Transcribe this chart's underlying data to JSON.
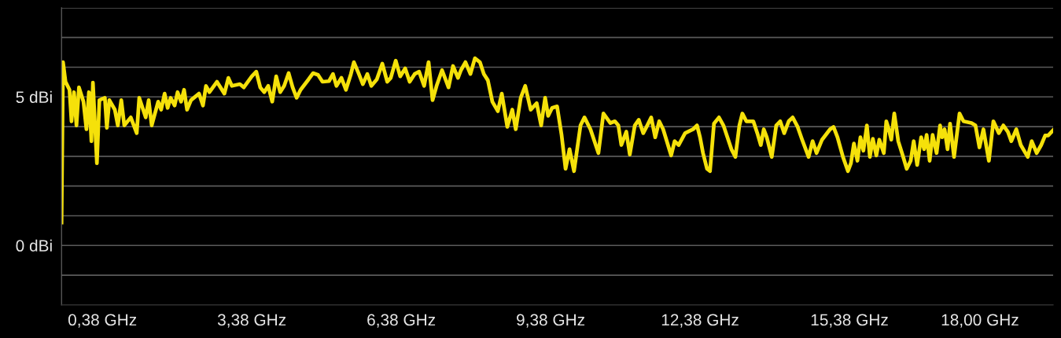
{
  "chart_data": {
    "type": "line",
    "x": [
      -0.44,
      -0.41,
      -0.36,
      -0.28,
      -0.24,
      -0.19,
      -0.14,
      -0.09,
      0.0,
      0.06,
      0.11,
      0.16,
      0.19,
      0.27,
      0.32,
      0.43,
      0.47,
      0.52,
      0.63,
      0.69,
      0.76,
      0.82,
      0.95,
      1.07,
      1.12,
      1.25,
      1.31,
      1.37,
      1.5,
      1.56,
      1.63,
      1.69,
      1.75,
      1.83,
      1.89,
      1.96,
      2.02,
      2.08,
      2.16,
      2.32,
      2.4,
      2.46,
      2.53,
      2.68,
      2.83,
      2.91,
      2.98,
      3.14,
      3.22,
      3.38,
      3.47,
      3.55,
      3.63,
      3.71,
      3.79,
      3.87,
      3.95,
      4.03,
      4.12,
      4.2,
      4.28,
      4.36,
      4.52,
      4.61,
      4.71,
      4.8,
      4.93,
      5.01,
      5.08,
      5.18,
      5.27,
      5.37,
      5.43,
      5.53,
      5.61,
      5.7,
      5.78,
      5.89,
      6.0,
      6.1,
      6.17,
      6.27,
      6.36,
      6.46,
      6.55,
      6.65,
      6.74,
      6.84,
      6.93,
      7.01,
      7.09,
      7.2,
      7.33,
      7.42,
      7.52,
      7.58,
      7.67,
      7.77,
      7.86,
      7.96,
      8.04,
      8.12,
      8.21,
      8.32,
      8.4,
      8.51,
      8.61,
      8.68,
      8.78,
      8.87,
      8.98,
      9.1,
      9.19,
      9.27,
      9.33,
      9.41,
      9.51,
      9.6,
      9.68,
      9.76,
      9.85,
      9.98,
      10.06,
      10.18,
      10.34,
      10.44,
      10.58,
      10.67,
      10.74,
      10.8,
      10.9,
      10.97,
      11.07,
      11.15,
      11.24,
      11.32,
      11.4,
      11.48,
      11.56,
      11.64,
      11.8,
      11.87,
      11.95,
      12.08,
      12.24,
      12.32,
      12.38,
      12.44,
      12.52,
      12.58,
      12.66,
      12.76,
      12.85,
      13.01,
      13.09,
      13.17,
      13.23,
      13.31,
      13.45,
      13.53,
      13.6,
      13.66,
      13.72,
      13.82,
      13.91,
      13.99,
      14.07,
      14.16,
      14.24,
      14.34,
      14.43,
      14.56,
      14.64,
      14.72,
      14.83,
      14.99,
      15.06,
      15.14,
      15.25,
      15.35,
      15.41,
      15.47,
      15.54,
      15.6,
      15.66,
      15.73,
      15.79,
      15.85,
      15.92,
      15.98,
      16.07,
      16.12,
      16.17,
      16.22,
      16.28,
      16.36,
      16.45,
      16.53,
      16.61,
      16.67,
      16.74,
      16.82,
      16.88,
      16.93,
      16.99,
      17.05,
      17.13,
      17.2,
      17.24,
      17.29,
      17.35,
      17.4,
      17.48,
      17.59,
      17.67,
      17.83,
      17.91,
      17.99,
      18.07,
      18.18,
      18.27,
      18.38,
      18.47,
      18.56,
      18.63,
      18.73,
      18.82,
      18.96,
      19.04,
      19.14,
      19.23,
      19.31,
      19.37,
      19.47
    ],
    "series": [
      {
        "color": "#f5e10a",
        "values": [
          0.77,
          6.17,
          5.51,
          5.24,
          4.18,
          5.16,
          4.04,
          5.32,
          4.84,
          3.91,
          5.16,
          3.51,
          5.48,
          2.77,
          4.89,
          4.97,
          3.96,
          4.89,
          4.57,
          4.04,
          4.89,
          4.04,
          4.31,
          3.78,
          4.97,
          4.31,
          4.89,
          4.04,
          4.84,
          4.57,
          5.11,
          4.63,
          4.97,
          4.71,
          5.16,
          4.84,
          5.24,
          4.57,
          4.89,
          5.11,
          4.71,
          5.37,
          5.16,
          5.51,
          5.11,
          5.64,
          5.37,
          5.43,
          5.32,
          5.69,
          5.85,
          5.32,
          5.16,
          5.37,
          4.84,
          5.69,
          5.16,
          5.37,
          5.8,
          5.32,
          4.97,
          5.24,
          5.59,
          5.8,
          5.74,
          5.51,
          5.53,
          5.77,
          5.37,
          5.64,
          5.24,
          5.77,
          6.17,
          5.77,
          5.43,
          5.77,
          5.37,
          5.59,
          6.12,
          5.51,
          5.64,
          6.22,
          5.69,
          5.96,
          5.51,
          5.77,
          5.85,
          5.37,
          6.17,
          4.89,
          5.37,
          5.9,
          5.32,
          6.04,
          5.64,
          5.9,
          6.17,
          5.77,
          6.3,
          6.17,
          5.77,
          5.56,
          4.84,
          4.52,
          5.11,
          3.99,
          4.57,
          3.91,
          4.97,
          5.37,
          4.57,
          4.79,
          4.04,
          4.97,
          4.36,
          4.63,
          4.68,
          3.72,
          2.58,
          3.24,
          2.5,
          4.04,
          4.31,
          3.91,
          3.11,
          4.44,
          4.12,
          4.18,
          4.04,
          3.38,
          3.83,
          3.06,
          4.04,
          4.23,
          3.78,
          4.04,
          4.31,
          3.64,
          4.18,
          3.91,
          3.03,
          3.51,
          3.38,
          3.78,
          3.91,
          4.04,
          3.64,
          3.11,
          2.58,
          2.5,
          4.1,
          4.31,
          4.04,
          3.24,
          2.98,
          4.04,
          4.44,
          4.18,
          4.18,
          3.78,
          3.38,
          3.91,
          3.64,
          2.98,
          4.04,
          4.18,
          3.78,
          4.18,
          4.31,
          3.99,
          3.56,
          2.98,
          3.51,
          3.11,
          3.56,
          3.91,
          3.99,
          3.64,
          2.98,
          2.5,
          2.77,
          3.43,
          2.85,
          3.64,
          3.19,
          4.04,
          2.98,
          3.59,
          3.03,
          3.56,
          3.11,
          4.18,
          3.91,
          3.56,
          4.44,
          3.51,
          3.03,
          2.58,
          2.85,
          3.51,
          2.71,
          3.64,
          3.24,
          3.72,
          2.85,
          3.72,
          3.11,
          4.04,
          3.64,
          3.91,
          3.24,
          4.1,
          2.98,
          4.44,
          4.18,
          4.12,
          4.04,
          3.3,
          3.91,
          2.85,
          4.18,
          3.78,
          4.04,
          3.83,
          3.51,
          3.91,
          3.38,
          2.98,
          3.51,
          3.11,
          3.38,
          3.7,
          3.7,
          3.88
        ]
      }
    ],
    "xlim": [
      -0.44,
      19.47
    ],
    "xticks": [
      {
        "value": 0.38,
        "label": "0,38 GHz"
      },
      {
        "value": 3.38,
        "label": "3,38 GHz"
      },
      {
        "value": 6.38,
        "label": "6,38 GHz"
      },
      {
        "value": 9.38,
        "label": "9,38 GHz"
      },
      {
        "value": 12.38,
        "label": "12,38 GHz"
      },
      {
        "value": 15.38,
        "label": "15,38 GHz"
      },
      {
        "value": 18.0,
        "label": "18,00 GHz"
      }
    ],
    "ylim": [
      -2,
      8
    ],
    "yticks": [
      {
        "value": -1,
        "label": null
      },
      {
        "value": 0,
        "label": "0 dBi"
      },
      {
        "value": 1,
        "label": null
      },
      {
        "value": 2,
        "label": null
      },
      {
        "value": 3,
        "label": null
      },
      {
        "value": 4,
        "label": null
      },
      {
        "value": 5,
        "label": "5 dBi"
      },
      {
        "value": 6,
        "label": null
      },
      {
        "value": 7,
        "label": null
      },
      {
        "value": 8,
        "label": null
      }
    ],
    "grid": "y",
    "marker": "none",
    "line_style": "solid",
    "legend": false
  }
}
